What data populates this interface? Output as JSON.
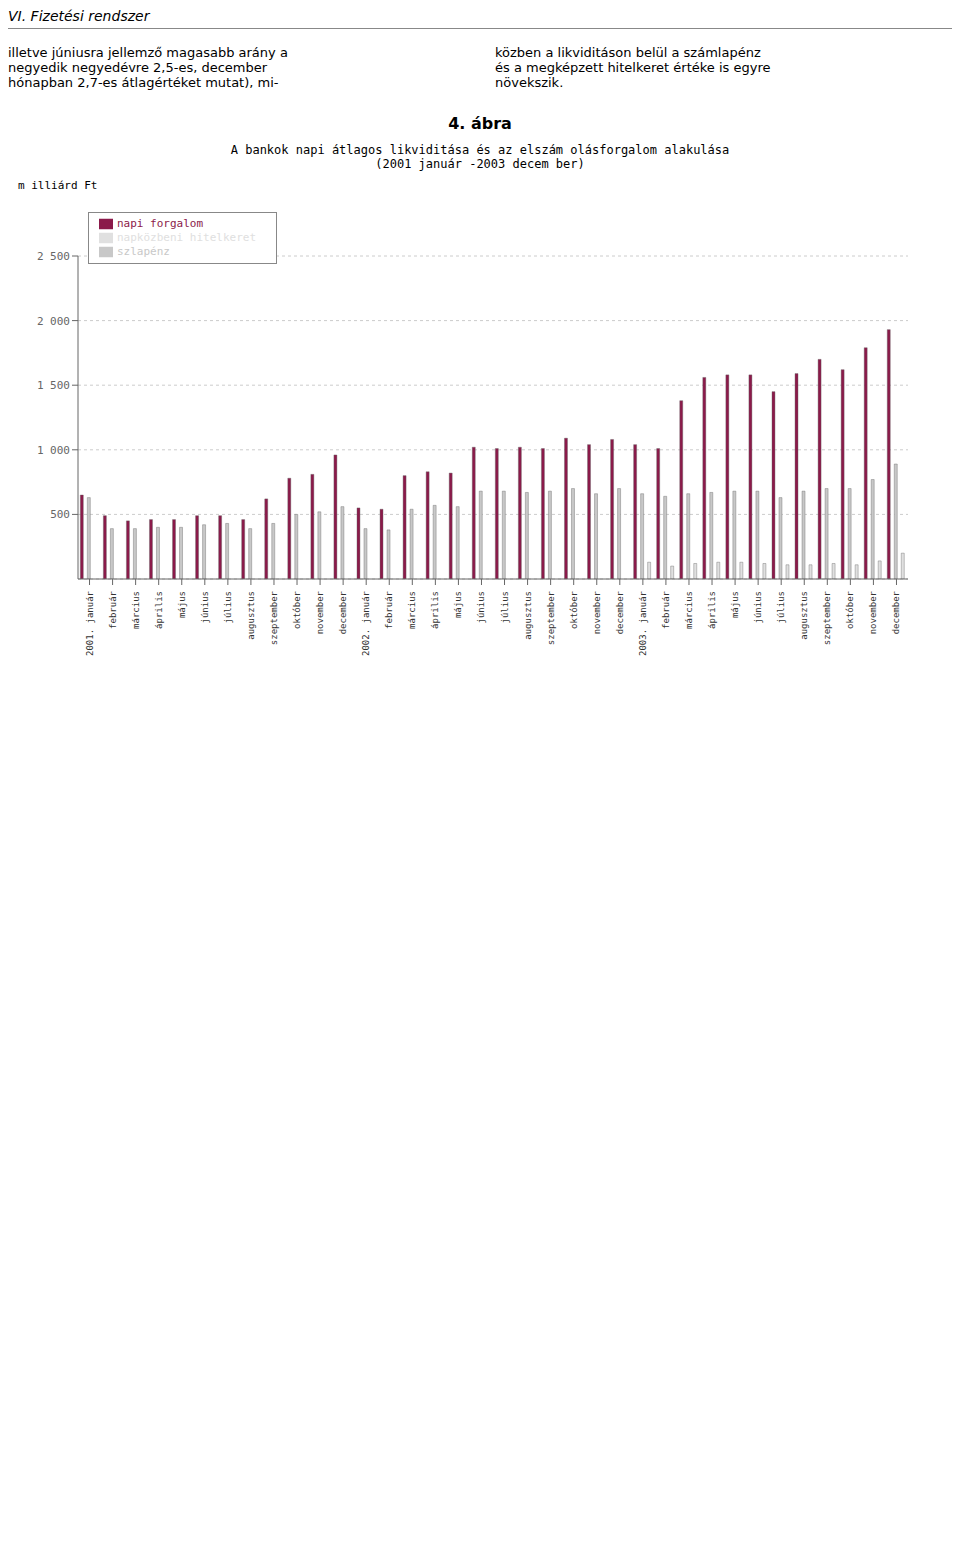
{
  "chart_data": {
    "type": "bar",
    "title": "A bankok napi átlagos likviditása és az elszám olásforgalom alakulása",
    "subtitle": "(2001 január -2003 decem ber)",
    "ylabel": "m illiárd Ft",
    "annotations": [
      "VI. Fizetési rendszer",
      "illetve júniusra jellemző magasabb arány a\nnegyedik negyedévre 2,5-es, december\nhónapban 2,7-es átlagértéket mutat), mi-",
      "közben a likviditáson belül a számlapénz\nés a megképzett hitelkeret értéke is egyre\nnövekszik.",
      "4. ábra"
    ],
    "categories": [
      "2001. január",
      "február",
      "március",
      "április",
      "május",
      "június",
      "július",
      "augusztus",
      "szeptember",
      "október",
      "november",
      "december",
      "2002. január",
      "február",
      "március",
      "április",
      "május",
      "június",
      "július",
      "augusztus",
      "szeptember",
      "október",
      "november",
      "december",
      "2003. január",
      "február",
      "március",
      "április",
      "május",
      "június",
      "július",
      "augusztus",
      "szeptember",
      "október",
      "november",
      "december"
    ],
    "series": [
      {
        "name": "napi forgalom",
        "color": "#8B1A4A",
        "values": [
          650,
          490,
          450,
          460,
          460,
          490,
          490,
          460,
          620,
          780,
          810,
          960,
          550,
          540,
          800,
          830,
          820,
          1020,
          1010,
          1020,
          1010,
          1090,
          1040,
          1080,
          1040,
          1010,
          1380,
          1560,
          1580,
          1580,
          1450,
          1590,
          1700,
          1620,
          1790,
          1930
        ]
      },
      {
        "name": "szlapénz",
        "color": "#C8C8C8",
        "values": [
          630,
          390,
          390,
          400,
          400,
          420,
          430,
          390,
          430,
          500,
          520,
          560,
          390,
          380,
          540,
          570,
          560,
          680,
          680,
          670,
          680,
          700,
          660,
          700,
          660,
          640,
          660,
          670,
          680,
          680,
          630,
          680,
          700,
          700,
          770,
          890
        ]
      },
      {
        "name": "napközbeni hitelkeret",
        "color": "#E0E0E0",
        "values": [
          0,
          0,
          0,
          0,
          0,
          0,
          0,
          0,
          0,
          0,
          0,
          0,
          0,
          0,
          0,
          0,
          0,
          0,
          0,
          0,
          0,
          0,
          0,
          0,
          130,
          100,
          120,
          130,
          130,
          120,
          110,
          110,
          120,
          110,
          140,
          200
        ]
      }
    ],
    "ylim": [
      0,
      2500
    ],
    "yticks": [
      500,
      {
        "value": 1000,
        "label": "1 000"
      },
      {
        "value": 1500,
        "label": "1 500"
      },
      {
        "value": 2000,
        "label": "2 000"
      },
      {
        "value": 2500,
        "label": "2 500"
      }
    ],
    "grid": true,
    "legend": "upper left"
  }
}
